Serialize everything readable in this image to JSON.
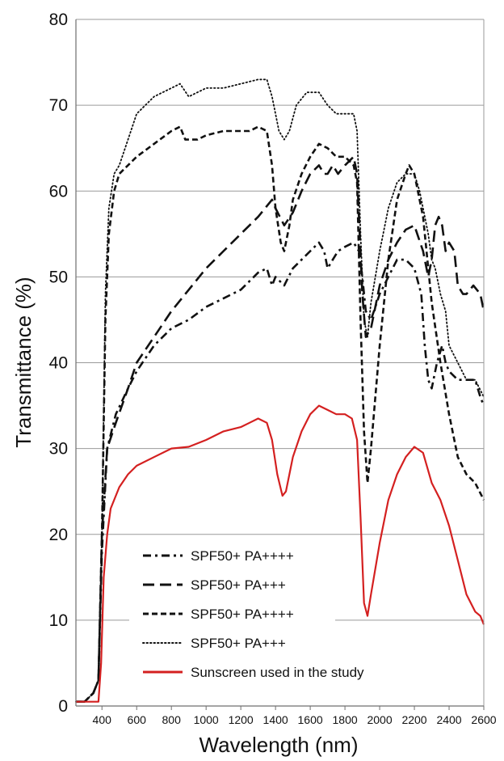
{
  "chart_data": {
    "type": "line",
    "xlabel": "Wavelength (nm)",
    "ylabel": "Transmittance (%)",
    "xlim": [
      250,
      2600
    ],
    "ylim": [
      0,
      80
    ],
    "xticks": [
      400,
      600,
      800,
      1000,
      1200,
      1400,
      1600,
      1800,
      2000,
      2200,
      2400,
      2600
    ],
    "yticks": [
      0,
      10,
      20,
      30,
      40,
      50,
      60,
      70,
      80
    ],
    "grid": "horizontal",
    "legend_position": "bottom-left",
    "series": [
      {
        "name": "SPF50+ PA++++",
        "color": "#111111",
        "dash": "dashdot",
        "points": [
          [
            250,
            0.5
          ],
          [
            300,
            0.5
          ],
          [
            350,
            1.5
          ],
          [
            380,
            3
          ],
          [
            400,
            18
          ],
          [
            430,
            30
          ],
          [
            480,
            34
          ],
          [
            550,
            37
          ],
          [
            600,
            39
          ],
          [
            700,
            42
          ],
          [
            800,
            44
          ],
          [
            900,
            45
          ],
          [
            1000,
            46.5
          ],
          [
            1100,
            47.5
          ],
          [
            1200,
            48.5
          ],
          [
            1300,
            50.5
          ],
          [
            1350,
            51
          ],
          [
            1380,
            49
          ],
          [
            1400,
            50
          ],
          [
            1450,
            49
          ],
          [
            1500,
            51
          ],
          [
            1550,
            52
          ],
          [
            1600,
            53
          ],
          [
            1650,
            54
          ],
          [
            1680,
            53
          ],
          [
            1700,
            51
          ],
          [
            1730,
            52
          ],
          [
            1760,
            53
          ],
          [
            1800,
            53.5
          ],
          [
            1850,
            54
          ],
          [
            1880,
            53
          ],
          [
            1900,
            50
          ],
          [
            1920,
            46
          ],
          [
            1950,
            45
          ],
          [
            2000,
            48
          ],
          [
            2050,
            50
          ],
          [
            2100,
            52
          ],
          [
            2150,
            52
          ],
          [
            2200,
            51
          ],
          [
            2240,
            48
          ],
          [
            2260,
            42
          ],
          [
            2280,
            38
          ],
          [
            2300,
            37
          ],
          [
            2330,
            40
          ],
          [
            2360,
            42
          ],
          [
            2380,
            40
          ],
          [
            2400,
            39
          ],
          [
            2450,
            38
          ],
          [
            2500,
            38
          ],
          [
            2550,
            38
          ],
          [
            2580,
            36
          ],
          [
            2600,
            35
          ]
        ]
      },
      {
        "name": "SPF50+ PA+++",
        "color": "#111111",
        "dash": "longdash",
        "points": [
          [
            250,
            0.5
          ],
          [
            300,
            0.5
          ],
          [
            350,
            1.5
          ],
          [
            380,
            3
          ],
          [
            400,
            20
          ],
          [
            430,
            30
          ],
          [
            480,
            33
          ],
          [
            550,
            37
          ],
          [
            600,
            40
          ],
          [
            700,
            43
          ],
          [
            800,
            46
          ],
          [
            900,
            48.5
          ],
          [
            1000,
            51
          ],
          [
            1100,
            53
          ],
          [
            1200,
            55
          ],
          [
            1300,
            57
          ],
          [
            1380,
            59
          ],
          [
            1400,
            58
          ],
          [
            1450,
            56
          ],
          [
            1500,
            57.5
          ],
          [
            1550,
            60
          ],
          [
            1600,
            62
          ],
          [
            1650,
            63
          ],
          [
            1680,
            62
          ],
          [
            1700,
            62
          ],
          [
            1730,
            63
          ],
          [
            1760,
            62
          ],
          [
            1800,
            63
          ],
          [
            1850,
            64
          ],
          [
            1870,
            62
          ],
          [
            1900,
            48
          ],
          [
            1920,
            43
          ],
          [
            1950,
            44
          ],
          [
            2000,
            49
          ],
          [
            2050,
            52
          ],
          [
            2100,
            54
          ],
          [
            2150,
            55.5
          ],
          [
            2200,
            56
          ],
          [
            2250,
            53
          ],
          [
            2280,
            50
          ],
          [
            2300,
            52
          ],
          [
            2320,
            56
          ],
          [
            2340,
            57
          ],
          [
            2360,
            56
          ],
          [
            2380,
            53
          ],
          [
            2400,
            54
          ],
          [
            2430,
            53
          ],
          [
            2450,
            49
          ],
          [
            2480,
            48
          ],
          [
            2500,
            48
          ],
          [
            2540,
            49
          ],
          [
            2580,
            48
          ],
          [
            2600,
            46
          ]
        ]
      },
      {
        "name": "SPF50+ PA++++",
        "color": "#111111",
        "dash": "shortdash",
        "points": [
          [
            250,
            0.5
          ],
          [
            300,
            0.5
          ],
          [
            350,
            1.5
          ],
          [
            380,
            3
          ],
          [
            400,
            20
          ],
          [
            420,
            45
          ],
          [
            440,
            55
          ],
          [
            470,
            60
          ],
          [
            500,
            62
          ],
          [
            600,
            64
          ],
          [
            700,
            65.5
          ],
          [
            800,
            67
          ],
          [
            850,
            67.5
          ],
          [
            880,
            66
          ],
          [
            950,
            66
          ],
          [
            1000,
            66.5
          ],
          [
            1100,
            67
          ],
          [
            1200,
            67
          ],
          [
            1250,
            67
          ],
          [
            1300,
            67.5
          ],
          [
            1350,
            67
          ],
          [
            1380,
            63
          ],
          [
            1400,
            58
          ],
          [
            1430,
            54
          ],
          [
            1450,
            53
          ],
          [
            1480,
            56
          ],
          [
            1500,
            59
          ],
          [
            1550,
            62
          ],
          [
            1600,
            64
          ],
          [
            1650,
            65.5
          ],
          [
            1700,
            65
          ],
          [
            1750,
            64
          ],
          [
            1800,
            64
          ],
          [
            1850,
            63
          ],
          [
            1870,
            61
          ],
          [
            1890,
            45
          ],
          [
            1910,
            32
          ],
          [
            1930,
            26
          ],
          [
            1950,
            30
          ],
          [
            2000,
            42
          ],
          [
            2050,
            52
          ],
          [
            2100,
            59
          ],
          [
            2150,
            62
          ],
          [
            2170,
            63
          ],
          [
            2200,
            62
          ],
          [
            2250,
            57
          ],
          [
            2300,
            47
          ],
          [
            2350,
            40
          ],
          [
            2400,
            34
          ],
          [
            2450,
            29
          ],
          [
            2500,
            27
          ],
          [
            2550,
            26
          ],
          [
            2600,
            24
          ]
        ]
      },
      {
        "name": "SPF50+ PA+++",
        "color": "#111111",
        "dash": "dotted",
        "points": [
          [
            250,
            0.5
          ],
          [
            300,
            0.5
          ],
          [
            350,
            1.5
          ],
          [
            380,
            3
          ],
          [
            400,
            20
          ],
          [
            420,
            48
          ],
          [
            440,
            58
          ],
          [
            470,
            62
          ],
          [
            500,
            63
          ],
          [
            550,
            66
          ],
          [
            600,
            69
          ],
          [
            700,
            71
          ],
          [
            800,
            72
          ],
          [
            850,
            72.5
          ],
          [
            900,
            71
          ],
          [
            1000,
            72
          ],
          [
            1100,
            72
          ],
          [
            1200,
            72.5
          ],
          [
            1300,
            73
          ],
          [
            1350,
            73
          ],
          [
            1380,
            71
          ],
          [
            1420,
            67
          ],
          [
            1450,
            66
          ],
          [
            1480,
            67
          ],
          [
            1520,
            70
          ],
          [
            1580,
            71.5
          ],
          [
            1650,
            71.5
          ],
          [
            1700,
            70
          ],
          [
            1750,
            69
          ],
          [
            1800,
            69
          ],
          [
            1850,
            69
          ],
          [
            1870,
            67
          ],
          [
            1890,
            55
          ],
          [
            1910,
            45
          ],
          [
            1930,
            43
          ],
          [
            1950,
            47
          ],
          [
            2000,
            53
          ],
          [
            2050,
            58
          ],
          [
            2100,
            61
          ],
          [
            2150,
            62
          ],
          [
            2200,
            62
          ],
          [
            2230,
            60
          ],
          [
            2250,
            58
          ],
          [
            2280,
            55
          ],
          [
            2300,
            52
          ],
          [
            2320,
            51
          ],
          [
            2350,
            48
          ],
          [
            2380,
            46
          ],
          [
            2400,
            42
          ],
          [
            2450,
            40
          ],
          [
            2500,
            38
          ],
          [
            2550,
            38
          ],
          [
            2600,
            36
          ]
        ]
      },
      {
        "name": "Sunscreen used in the study",
        "color": "#d42020",
        "dash": "solid",
        "points": [
          [
            250,
            0.5
          ],
          [
            300,
            0.5
          ],
          [
            350,
            0.5
          ],
          [
            380,
            0.5
          ],
          [
            395,
            5
          ],
          [
            410,
            15
          ],
          [
            430,
            20
          ],
          [
            450,
            23
          ],
          [
            500,
            25.5
          ],
          [
            550,
            27
          ],
          [
            600,
            28
          ],
          [
            700,
            29
          ],
          [
            800,
            30
          ],
          [
            900,
            30.2
          ],
          [
            1000,
            31
          ],
          [
            1100,
            32
          ],
          [
            1200,
            32.5
          ],
          [
            1250,
            33
          ],
          [
            1300,
            33.5
          ],
          [
            1350,
            33
          ],
          [
            1380,
            31
          ],
          [
            1410,
            27
          ],
          [
            1440,
            24.5
          ],
          [
            1460,
            25
          ],
          [
            1480,
            27
          ],
          [
            1500,
            29
          ],
          [
            1550,
            32
          ],
          [
            1600,
            34
          ],
          [
            1650,
            35
          ],
          [
            1700,
            34.5
          ],
          [
            1750,
            34
          ],
          [
            1800,
            34
          ],
          [
            1840,
            33.5
          ],
          [
            1870,
            31
          ],
          [
            1890,
            22
          ],
          [
            1910,
            12
          ],
          [
            1930,
            10.5
          ],
          [
            1950,
            13
          ],
          [
            2000,
            19
          ],
          [
            2050,
            24
          ],
          [
            2100,
            27
          ],
          [
            2150,
            29
          ],
          [
            2200,
            30.2
          ],
          [
            2250,
            29.5
          ],
          [
            2300,
            26
          ],
          [
            2350,
            24
          ],
          [
            2400,
            21
          ],
          [
            2450,
            17
          ],
          [
            2500,
            13
          ],
          [
            2550,
            11
          ],
          [
            2580,
            10.5
          ],
          [
            2600,
            9.5
          ]
        ]
      }
    ]
  }
}
